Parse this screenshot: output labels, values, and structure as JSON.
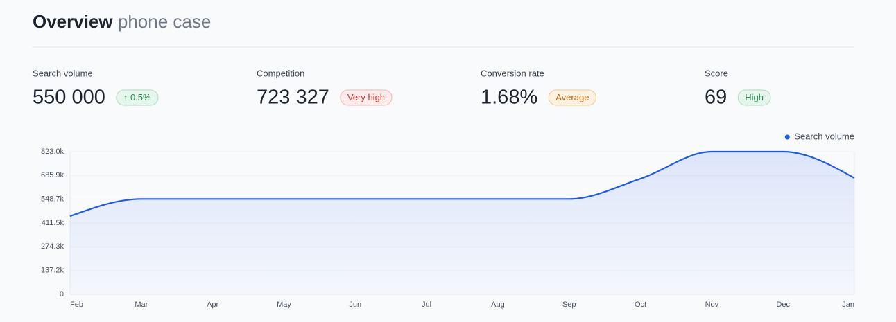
{
  "header": {
    "title": "Overview",
    "subtitle": "phone case"
  },
  "stats": [
    {
      "label": "Search volume",
      "value": "550 000",
      "badge": "↑ 0.5%"
    },
    {
      "label": "Competition",
      "value": "723 327",
      "badge": "Very high"
    },
    {
      "label": "Conversion rate",
      "value": "1.68%",
      "badge": "Average"
    },
    {
      "label": "Score",
      "value": "69",
      "badge": "High"
    }
  ],
  "chart_data": {
    "type": "line",
    "categories": [
      "Feb",
      "Mar",
      "Apr",
      "May",
      "Jun",
      "Jul",
      "Aug",
      "Sep",
      "Oct",
      "Nov",
      "Dec",
      "Jan"
    ],
    "series": [
      {
        "name": "Search volume",
        "color": "#1d5ae6",
        "values": [
          451000,
          550000,
          550000,
          550000,
          550000,
          550000,
          550000,
          550000,
          667000,
          823000,
          823000,
          671000
        ]
      }
    ],
    "ylim": [
      0,
      823000
    ],
    "yticks": [
      0,
      {
        "value": 137200,
        "label": "137.2k"
      },
      {
        "value": 274300,
        "label": "274.3k"
      },
      {
        "value": 411500,
        "label": "411.5k"
      },
      {
        "value": 548700,
        "label": "548.7k"
      },
      {
        "value": 685900,
        "label": "685.9k"
      },
      {
        "value": 823000,
        "label": "823.0k"
      }
    ],
    "grid": true,
    "legend": "top-right",
    "fill": true
  }
}
